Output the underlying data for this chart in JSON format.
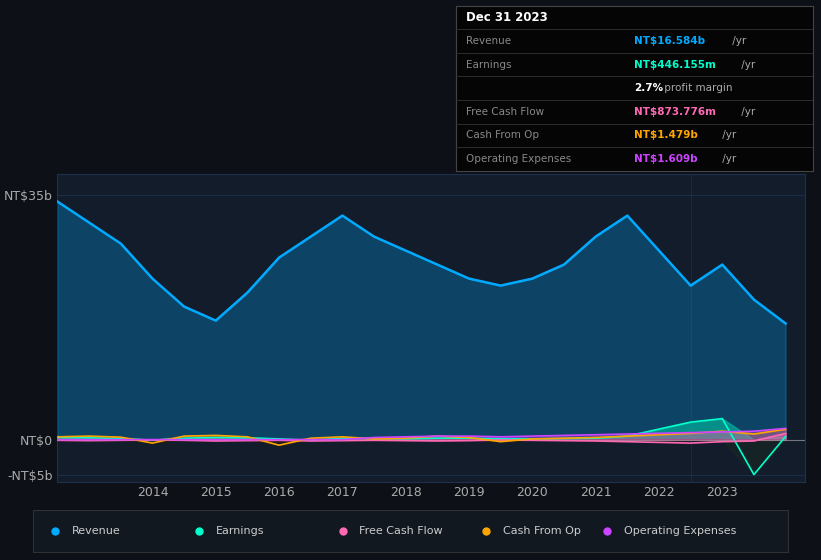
{
  "bg_color": "#0d1117",
  "plot_bg_color": "#131c2b",
  "grid_color": "#1e3050",
  "ylim": [
    -6000000000,
    38000000000
  ],
  "info_box": {
    "date": "Dec 31 2023",
    "rows": [
      {
        "label": "Revenue",
        "value": "NT$16.584b",
        "suffix": " /yr",
        "color": "#00aaff"
      },
      {
        "label": "Earnings",
        "value": "NT$446.155m",
        "suffix": " /yr",
        "color": "#00ffcc"
      },
      {
        "label": "",
        "value": "2.7%",
        "suffix": " profit margin",
        "color": "#ffffff",
        "bold_part": true
      },
      {
        "label": "Free Cash Flow",
        "value": "NT$873.776m",
        "suffix": " /yr",
        "color": "#ff69b4"
      },
      {
        "label": "Cash From Op",
        "value": "NT$1.479b",
        "suffix": " /yr",
        "color": "#ffa500"
      },
      {
        "label": "Operating Expenses",
        "value": "NT$1.609b",
        "suffix": " /yr",
        "color": "#cc44ff"
      }
    ]
  },
  "legend": [
    {
      "label": "Revenue",
      "color": "#00aaff"
    },
    {
      "label": "Earnings",
      "color": "#00ffcc"
    },
    {
      "label": "Free Cash Flow",
      "color": "#ff69b4"
    },
    {
      "label": "Cash From Op",
      "color": "#ffa500"
    },
    {
      "label": "Operating Expenses",
      "color": "#cc44ff"
    }
  ],
  "revenue": [
    34000000000,
    31000000000,
    28000000000,
    23000000000,
    19000000000,
    17000000000,
    21000000000,
    26000000000,
    29000000000,
    32000000000,
    29000000000,
    27000000000,
    25000000000,
    23000000000,
    22000000000,
    23000000000,
    25000000000,
    29000000000,
    32000000000,
    27000000000,
    22000000000,
    25000000000,
    20000000000,
    16584000000
  ],
  "earnings": [
    300000000,
    250000000,
    150000000,
    -100000000,
    200000000,
    300000000,
    250000000,
    100000000,
    -100000000,
    200000000,
    150000000,
    100000000,
    200000000,
    200000000,
    100000000,
    100000000,
    150000000,
    200000000,
    500000000,
    1500000000,
    2500000000,
    3000000000,
    -5000000000,
    446000000
  ],
  "free_cash_flow": [
    -100000000,
    -150000000,
    -100000000,
    -50000000,
    -100000000,
    -200000000,
    -150000000,
    -100000000,
    -200000000,
    -150000000,
    -100000000,
    -150000000,
    -200000000,
    -150000000,
    -50000000,
    -100000000,
    -150000000,
    -200000000,
    -300000000,
    -400000000,
    -500000000,
    -300000000,
    -200000000,
    874000000
  ],
  "cash_from_op": [
    400000000,
    500000000,
    350000000,
    -500000000,
    500000000,
    600000000,
    400000000,
    -800000000,
    200000000,
    400000000,
    100000000,
    200000000,
    500000000,
    300000000,
    -300000000,
    100000000,
    200000000,
    300000000,
    500000000,
    700000000,
    900000000,
    1200000000,
    800000000,
    1479000000
  ],
  "op_expenses": [
    0,
    0,
    0,
    0,
    0,
    0,
    0,
    0,
    0,
    0,
    300000000,
    400000000,
    500000000,
    500000000,
    400000000,
    500000000,
    600000000,
    700000000,
    800000000,
    900000000,
    1000000000,
    1100000000,
    1200000000,
    1609000000
  ]
}
